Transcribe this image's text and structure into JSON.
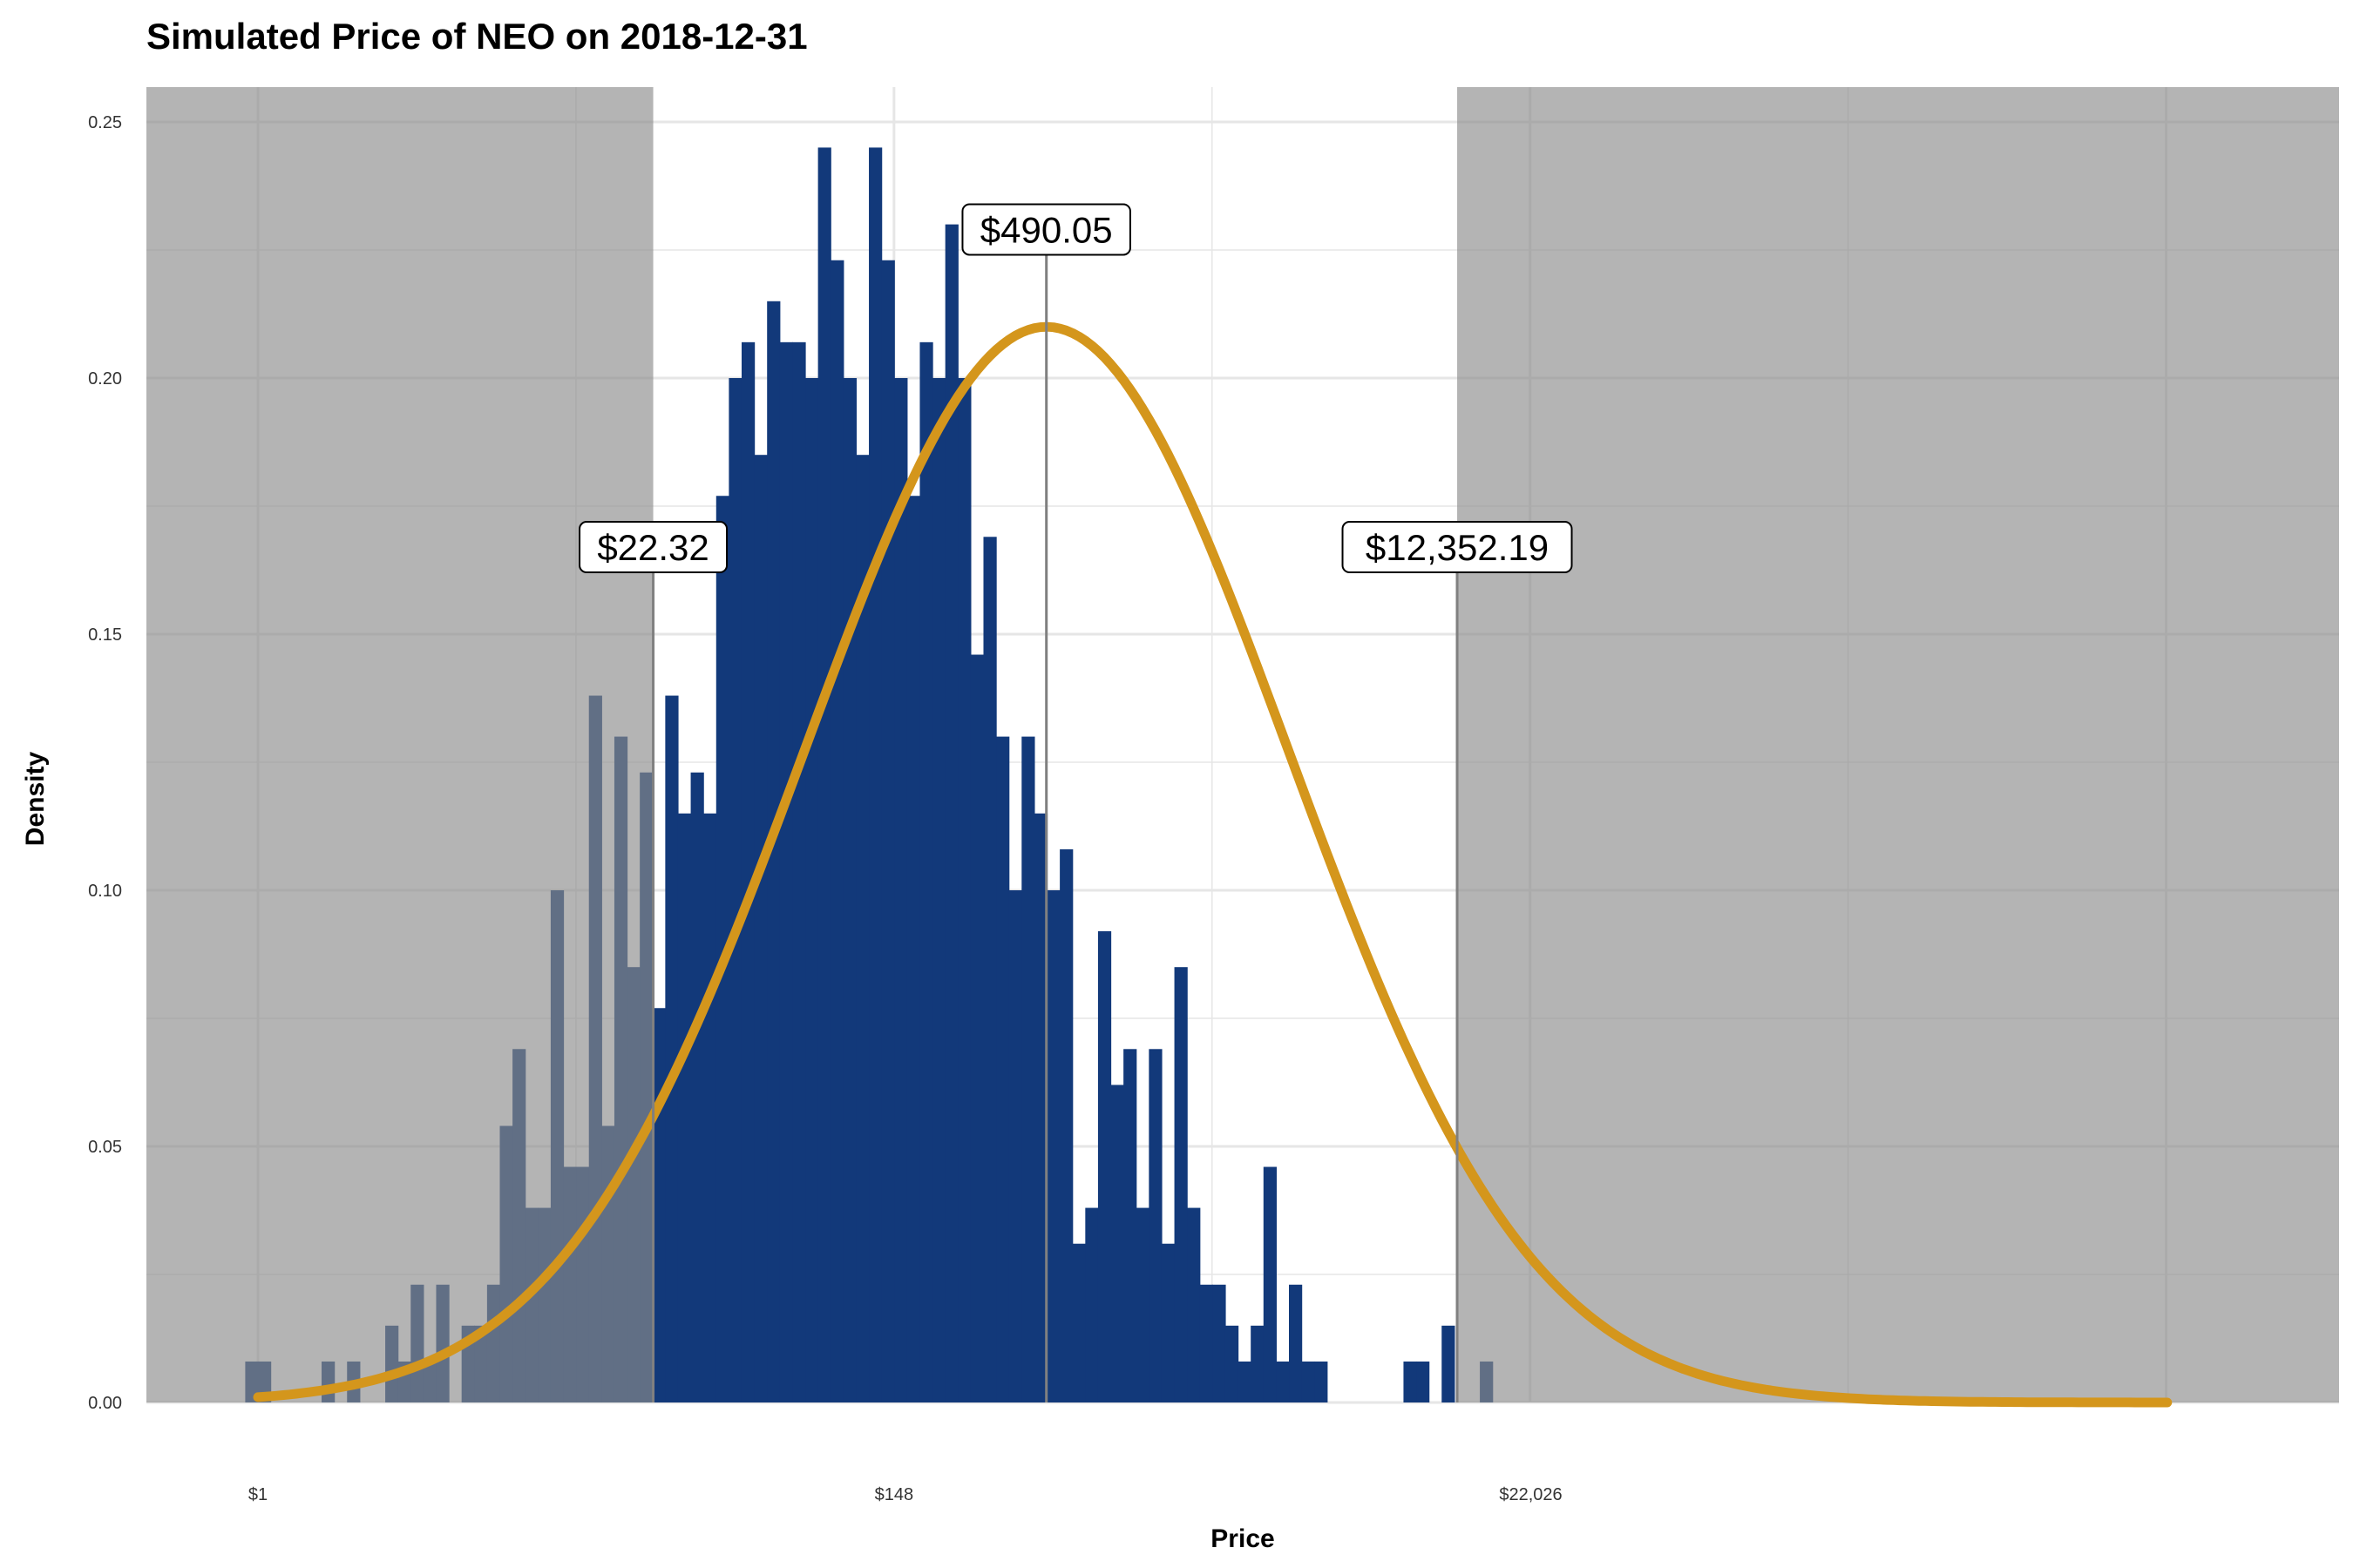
{
  "chart_data": {
    "type": "histogram",
    "title": "Simulated Price of NEO on 2018-12-31",
    "xlabel": "Price",
    "ylabel": "Density",
    "x_scale": "log",
    "x_tick_labels": [
      "$1",
      "$148",
      "$22,026"
    ],
    "x_tick_values": [
      1,
      148,
      22026
    ],
    "y_ticks": [
      0.0,
      0.05,
      0.1,
      0.15,
      0.2,
      0.25
    ],
    "y_tick_labels": [
      "0.00",
      "0.05",
      "0.10",
      "0.15",
      "0.20",
      "0.25"
    ],
    "ylim": [
      0,
      0.25
    ],
    "log_price_range": [
      0,
      15
    ],
    "bin_width_log_price": 0.1,
    "bins_first_center_log_price": -0.05,
    "bin_densities": [
      0.008,
      0.008,
      0,
      0,
      0,
      0,
      0.008,
      0,
      0.008,
      0,
      0,
      0.015,
      0.008,
      0.023,
      0.008,
      0.023,
      0,
      0.015,
      0.015,
      0.023,
      0.054,
      0.069,
      0.038,
      0.038,
      0.1,
      0.046,
      0.046,
      0.138,
      0.054,
      0.13,
      0.085,
      0.123,
      0.077,
      0.138,
      0.115,
      0.123,
      0.115,
      0.177,
      0.2,
      0.207,
      0.185,
      0.215,
      0.207,
      0.207,
      0.2,
      0.245,
      0.223,
      0.2,
      0.185,
      0.245,
      0.223,
      0.2,
      0.177,
      0.207,
      0.2,
      0.23,
      0.2,
      0.146,
      0.169,
      0.13,
      0.1,
      0.13,
      0.115,
      0.1,
      0.108,
      0.031,
      0.038,
      0.092,
      0.062,
      0.069,
      0.038,
      0.069,
      0.031,
      0.085,
      0.038,
      0.023,
      0.023,
      0.015,
      0.008,
      0.015,
      0.046,
      0.008,
      0.023,
      0.008,
      0.008,
      0,
      0,
      0,
      0,
      0,
      0,
      0.008,
      0.008,
      0,
      0.015,
      0,
      0,
      0.008
    ],
    "fitted_curve": {
      "type": "normal",
      "mean_log_price": 6.195,
      "sd_log_price": 1.9,
      "peak_density": 0.21
    },
    "confidence_interval": {
      "lower": 22.32,
      "upper": 12352.19
    },
    "annotations": [
      {
        "label": "$22.32",
        "value": 22.32,
        "y": 0.167
      },
      {
        "label": "$490.05",
        "value": 490.05,
        "y": 0.229
      },
      {
        "label": "$12,352.19",
        "value": 12352.19,
        "y": 0.167
      }
    ],
    "colors": {
      "bars": "#12397A",
      "curve": "#D4961C",
      "shade": "#8C8C8C",
      "grid": "#E6E6E6",
      "panel": "#FFFFFF"
    },
    "grid": true,
    "legend": "none"
  }
}
